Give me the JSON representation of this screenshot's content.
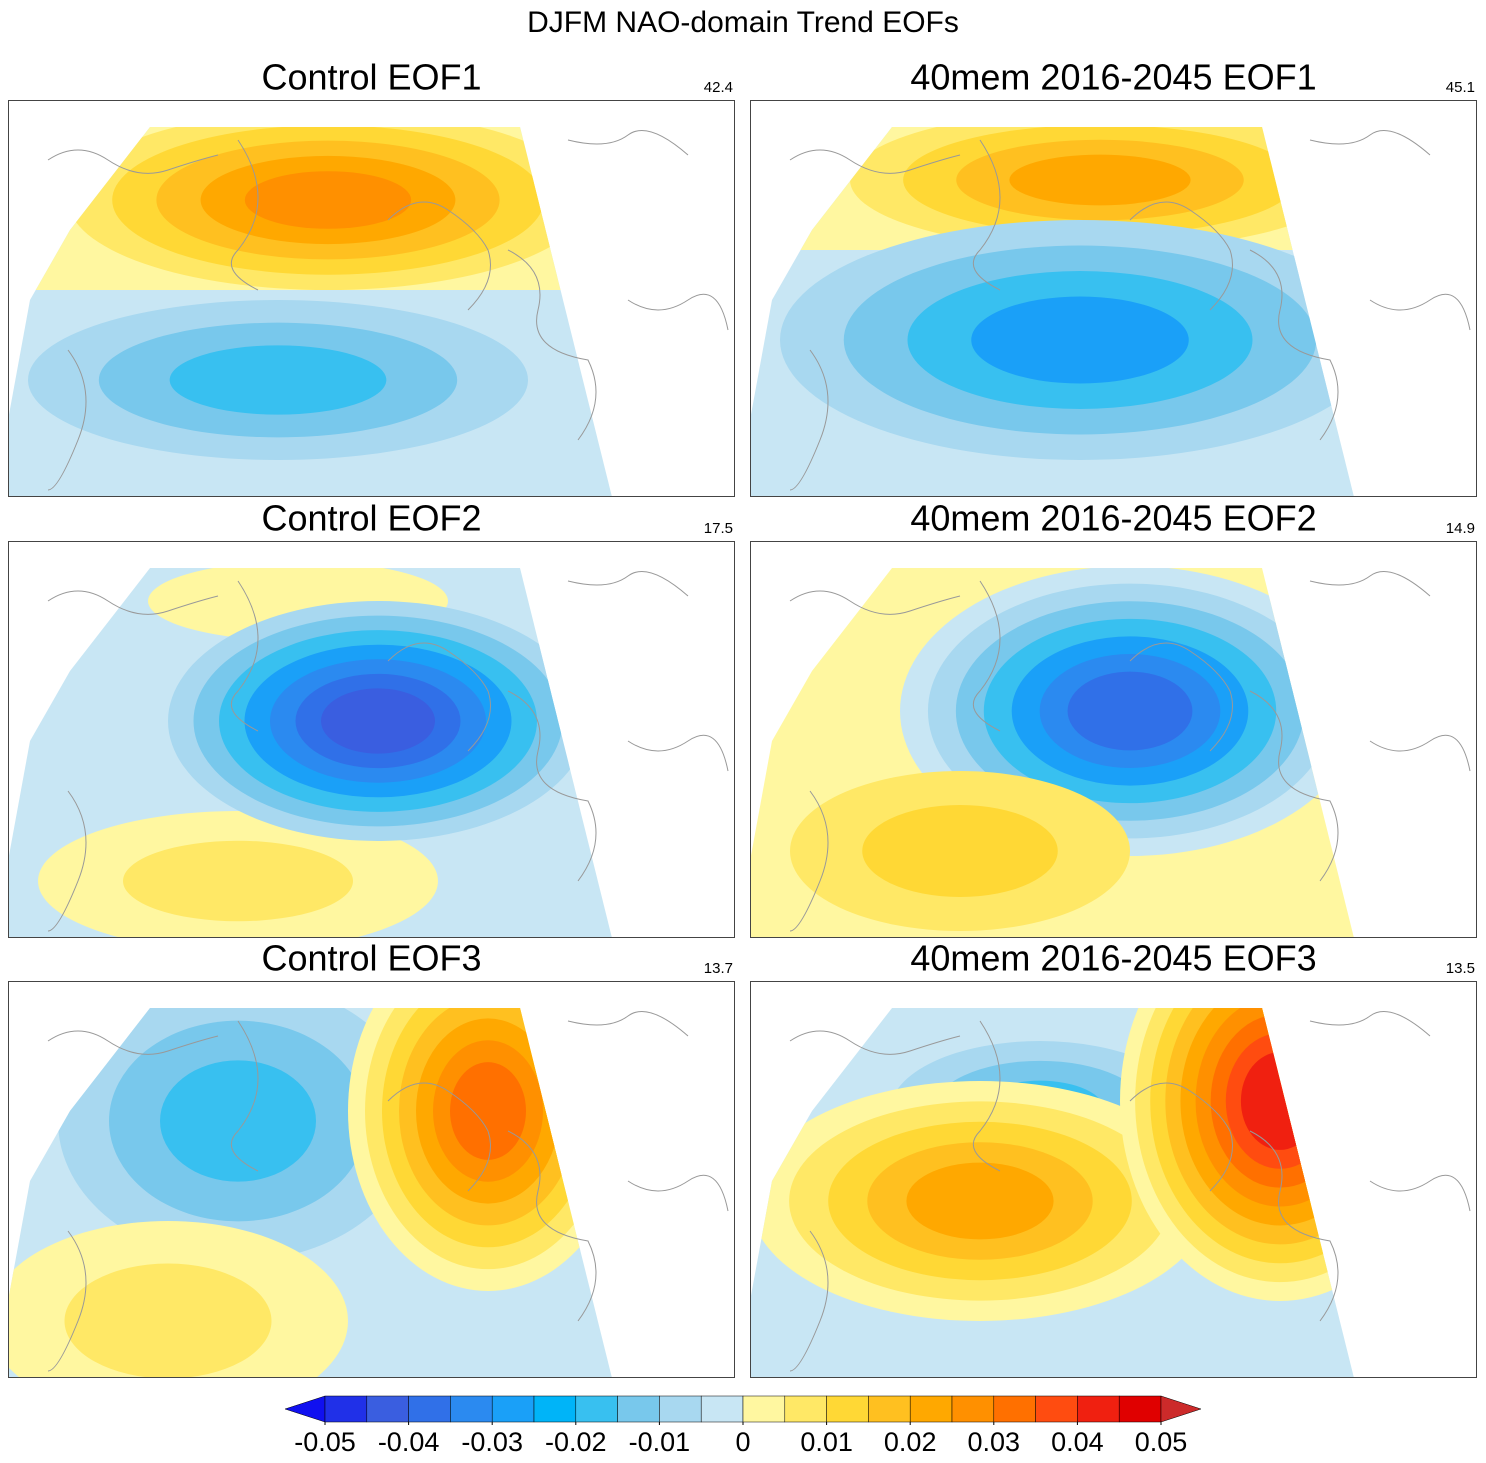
{
  "title": "DJFM NAO-domain Trend EOFs",
  "panels": [
    {
      "title": "Control EOF1",
      "percent": 42.4
    },
    {
      "title": "40mem 2016-2045 EOF1",
      "percent": 45.1
    },
    {
      "title": "Control EOF2",
      "percent": 17.5
    },
    {
      "title": "40mem 2016-2045 EOF2",
      "percent": 14.9
    },
    {
      "title": "Control EOF3",
      "percent": 13.7
    },
    {
      "title": "40mem 2016-2045 EOF3",
      "percent": 13.5
    }
  ],
  "colorbar": {
    "ticks": [
      -0.05,
      -0.04,
      -0.03,
      -0.02,
      -0.01,
      0,
      0.01,
      0.02,
      0.03,
      0.04,
      0.05
    ],
    "colors": [
      "#1010f0",
      "#2030e8",
      "#3a5ee0",
      "#3070e8",
      "#2b8af0",
      "#1aa0f8",
      "#00b4f8",
      "#38c0f0",
      "#78c8ec",
      "#a8d8f0",
      "#c8e6f4",
      "#fff7a0",
      "#ffe866",
      "#ffd835",
      "#ffc020",
      "#ffa800",
      "#ff9000",
      "#ff7000",
      "#ff4c10",
      "#f02010",
      "#e00000",
      "#cc2a2a"
    ]
  }
}
